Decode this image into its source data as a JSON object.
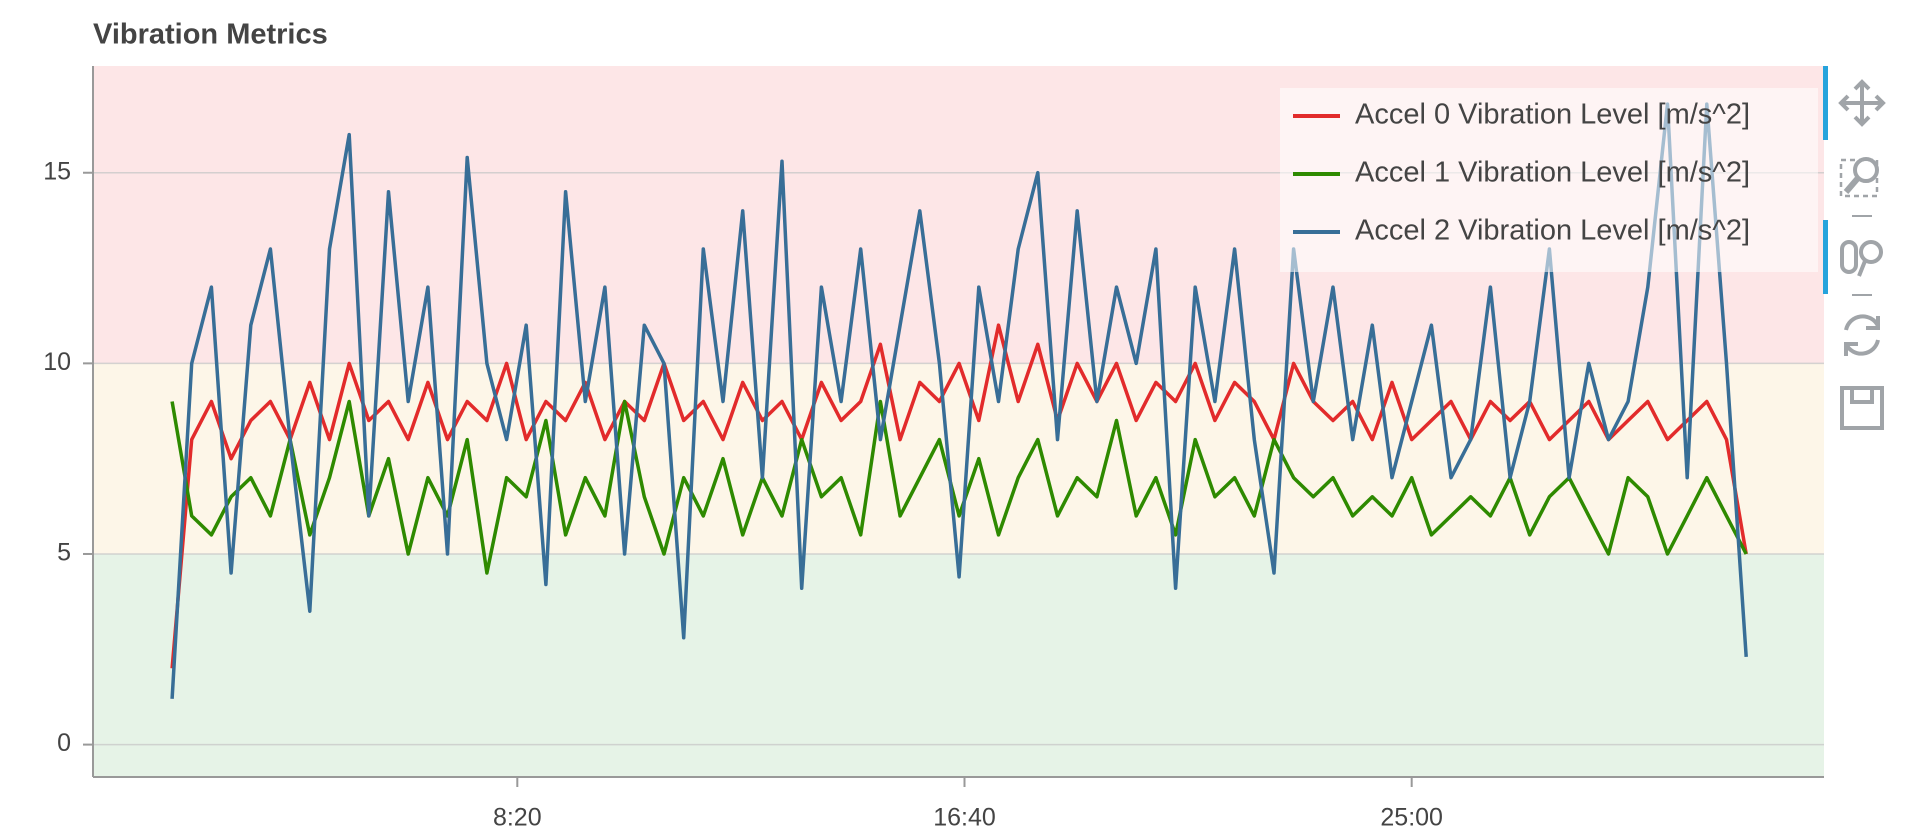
{
  "chart_data": {
    "type": "line",
    "title": "Vibration Metrics",
    "x": [
      114,
      136,
      158,
      180,
      202,
      224,
      246,
      268,
      290,
      312,
      334,
      356,
      378,
      400,
      422,
      444,
      466,
      488,
      510,
      532,
      554,
      576,
      598,
      620,
      642,
      664,
      686,
      708,
      730,
      752,
      774,
      796,
      818,
      840,
      862,
      884,
      906,
      928,
      950,
      972,
      994,
      1016,
      1038,
      1060,
      1082,
      1104,
      1126,
      1148,
      1170,
      1192,
      1214,
      1236,
      1258,
      1280,
      1302,
      1324,
      1346,
      1368,
      1390,
      1412,
      1434,
      1456,
      1478,
      1500,
      1522,
      1544,
      1566,
      1588,
      1610,
      1632,
      1654,
      1676,
      1698,
      1720,
      1742,
      1764,
      1786,
      1808,
      1830,
      1852,
      1874
    ],
    "series": [
      {
        "name": "Accel 0 Vibration Level [m/s^2]",
        "color": "#e22b2b",
        "values": [
          2,
          8,
          9,
          7.5,
          8.5,
          9,
          8,
          9.5,
          8,
          10,
          8.5,
          9,
          8,
          9.5,
          8,
          9,
          8.5,
          10,
          8,
          9,
          8.5,
          9.5,
          8,
          9,
          8.5,
          10,
          8.5,
          9,
          8,
          9.5,
          8.5,
          9,
          8,
          9.5,
          8.5,
          9,
          10.5,
          8,
          9.5,
          9,
          10,
          8.5,
          11,
          9,
          10.5,
          8.5,
          10,
          9,
          10,
          8.5,
          9.5,
          9,
          10,
          8.5,
          9.5,
          9,
          8,
          10,
          9,
          8.5,
          9,
          8,
          9.5,
          8,
          8.5,
          9,
          8,
          9,
          8.5,
          9,
          8,
          8.5,
          9,
          8,
          8.5,
          9,
          8,
          8.5,
          9,
          8,
          5
        ]
      },
      {
        "name": "Accel 1 Vibration Level [m/s^2]",
        "color": "#2e8a00",
        "values": [
          9,
          6,
          5.5,
          6.5,
          7,
          6,
          8,
          5.5,
          7,
          9,
          6,
          7.5,
          5,
          7,
          6,
          8,
          4.5,
          7,
          6.5,
          8.5,
          5.5,
          7,
          6,
          9,
          6.5,
          5,
          7,
          6,
          7.5,
          5.5,
          7,
          6,
          8,
          6.5,
          7,
          5.5,
          9,
          6,
          7,
          8,
          6,
          7.5,
          5.5,
          7,
          8,
          6,
          7,
          6.5,
          8.5,
          6,
          7,
          5.5,
          8,
          6.5,
          7,
          6,
          8,
          7,
          6.5,
          7,
          6,
          6.5,
          6,
          7,
          5.5,
          6,
          6.5,
          6,
          7,
          5.5,
          6.5,
          7,
          6,
          5,
          7,
          6.5,
          5,
          6,
          7,
          6,
          5
        ]
      },
      {
        "name": "Accel 2 Vibration Level [m/s^2]",
        "color": "#386e97",
        "values": [
          1.2,
          10,
          12,
          4.5,
          11,
          13,
          8,
          3.5,
          13,
          16,
          6,
          14.5,
          9,
          12,
          5,
          15.4,
          10,
          8,
          11,
          4.2,
          14.5,
          9,
          12,
          5,
          11,
          10,
          2.8,
          13,
          9,
          14,
          7,
          15.3,
          4.1,
          12,
          9,
          13,
          8,
          11,
          14,
          10,
          4.4,
          12,
          9,
          13,
          15,
          8,
          14,
          9,
          12,
          10,
          13,
          4.1,
          12,
          9,
          13,
          8,
          4.5,
          13,
          9,
          12,
          8,
          11,
          7,
          9,
          11,
          7,
          8,
          12,
          7,
          9,
          13,
          7,
          10,
          8,
          9,
          12,
          16.8,
          7,
          16.8,
          10,
          2.3
        ]
      }
    ],
    "xlim": [
      25.6,
      1961
    ],
    "ylim": [
      -0.85,
      17.8
    ],
    "xticks": [
      {
        "value": 500,
        "label": "8:20"
      },
      {
        "value": 1000,
        "label": "16:40"
      },
      {
        "value": 1500,
        "label": "25:00"
      }
    ],
    "yticks": [
      0,
      5,
      10,
      15
    ],
    "bands": [
      {
        "range": [
          10,
          17.8
        ],
        "color": "#fde6e7"
      },
      {
        "range": [
          5,
          10
        ],
        "color": "#fdf6e8"
      },
      {
        "range": [
          -0.85,
          5
        ],
        "color": "#e6f3e7"
      }
    ],
    "grid": true,
    "legend": "top_right"
  }
}
